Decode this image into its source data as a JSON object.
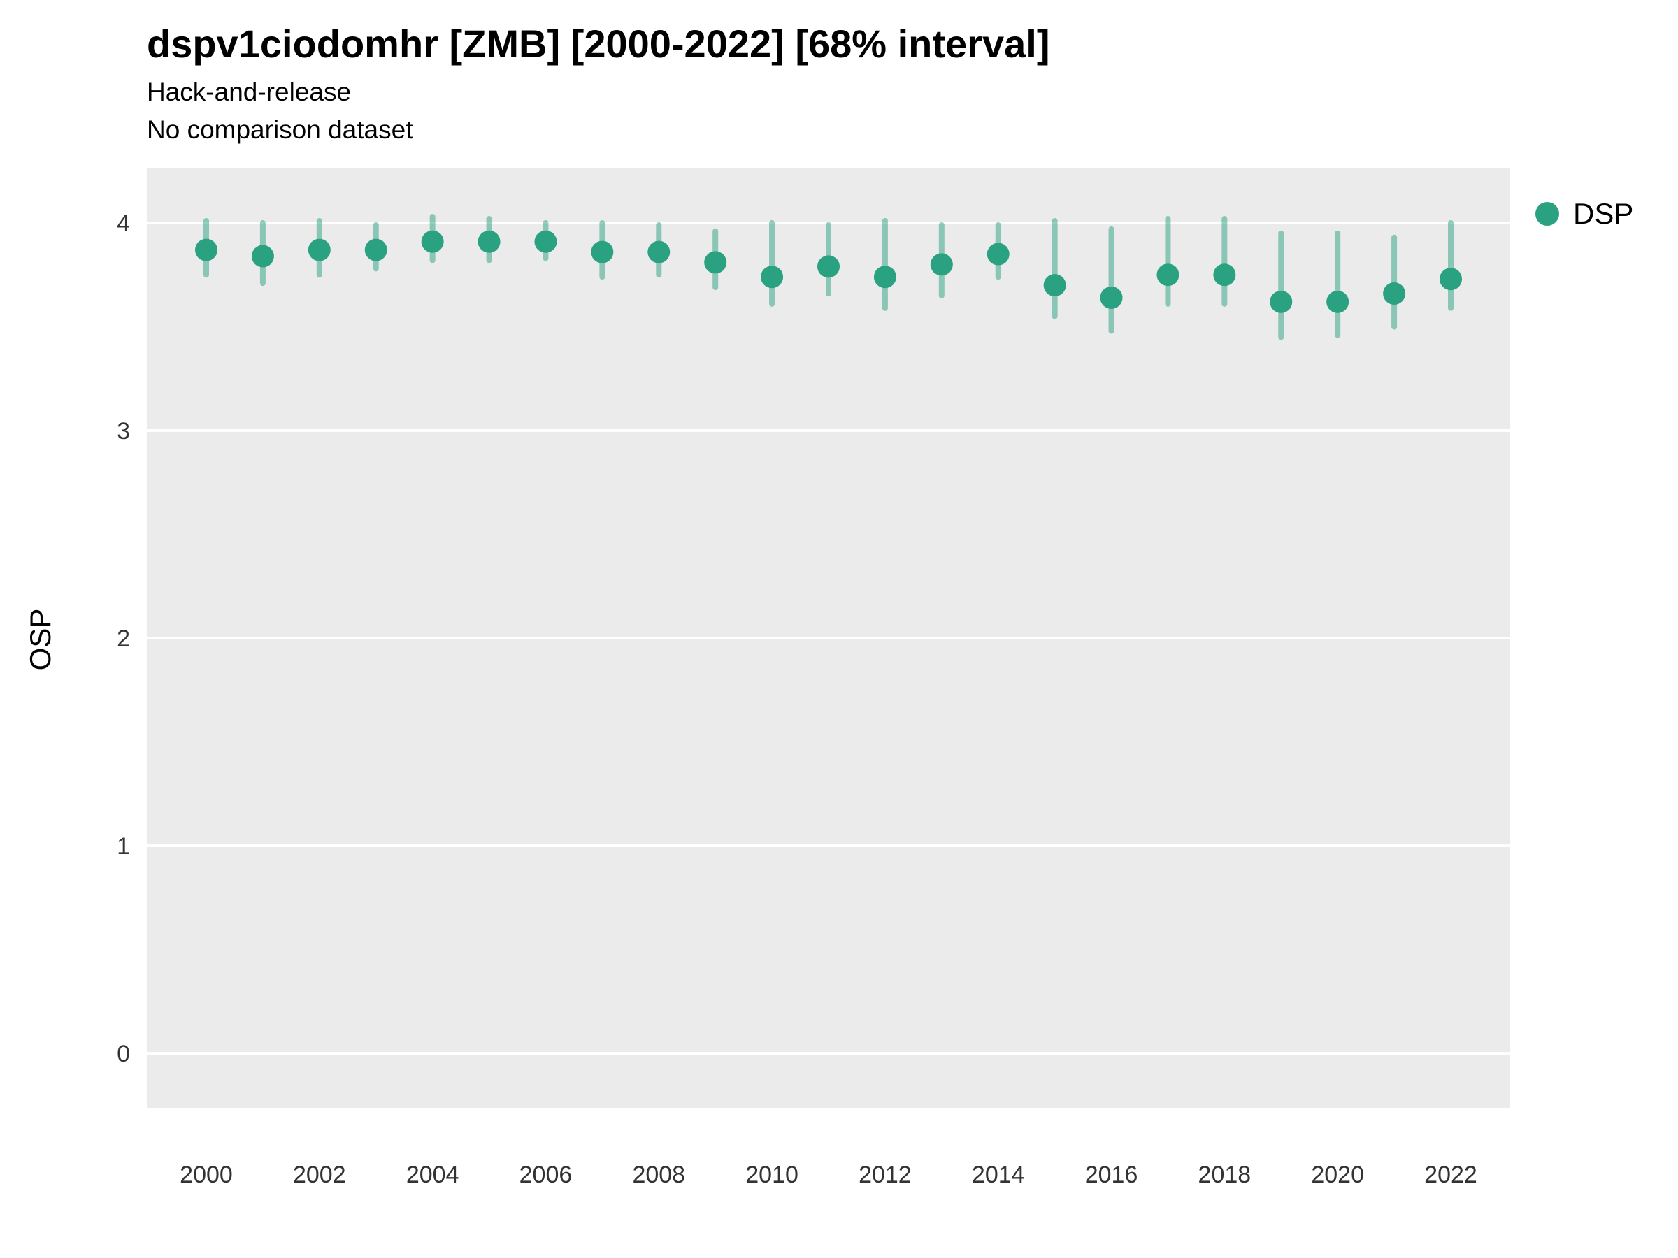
{
  "title": "dspv1ciodomhr [ZMB] [2000-2022] [68% interval]",
  "subtitle1": "Hack-and-release",
  "subtitle2": "No comparison dataset",
  "legend": {
    "label": "DSP",
    "color": "#2aa180"
  },
  "chart_data": {
    "type": "scatter",
    "title": "dspv1ciodomhr [ZMB] [2000-2022] [68% interval]",
    "subtitle": [
      "Hack-and-release",
      "No comparison dataset"
    ],
    "xlabel": "",
    "ylabel": "OSP",
    "ylim": [
      -0.27,
      4.27
    ],
    "interval_label": "68% interval",
    "grid": "horizontal-major-only",
    "legend_position": "right-top",
    "x": [
      2000,
      2001,
      2002,
      2003,
      2004,
      2005,
      2006,
      2007,
      2008,
      2009,
      2010,
      2011,
      2012,
      2013,
      2014,
      2015,
      2016,
      2017,
      2018,
      2019,
      2020,
      2021,
      2022
    ],
    "x_ticks": [
      2000,
      2002,
      2004,
      2006,
      2008,
      2010,
      2012,
      2014,
      2016,
      2018,
      2020,
      2022
    ],
    "y_ticks": [
      0,
      1,
      2,
      3,
      4
    ],
    "series": [
      {
        "name": "DSP",
        "values": [
          3.87,
          3.84,
          3.87,
          3.87,
          3.91,
          3.91,
          3.91,
          3.86,
          3.86,
          3.81,
          3.74,
          3.79,
          3.74,
          3.8,
          3.85,
          3.7,
          3.64,
          3.75,
          3.75,
          3.62,
          3.62,
          3.66,
          3.73
        ],
        "lower": [
          3.75,
          3.71,
          3.75,
          3.78,
          3.82,
          3.82,
          3.83,
          3.74,
          3.75,
          3.69,
          3.61,
          3.66,
          3.59,
          3.65,
          3.74,
          3.55,
          3.48,
          3.61,
          3.61,
          3.45,
          3.46,
          3.5,
          3.59
        ],
        "upper": [
          4.01,
          4.0,
          4.01,
          3.99,
          4.03,
          4.02,
          4.0,
          4.0,
          3.99,
          3.96,
          4.0,
          3.99,
          4.01,
          3.99,
          3.99,
          4.01,
          3.97,
          4.02,
          4.02,
          3.95,
          3.95,
          3.93,
          4.0
        ]
      }
    ],
    "colors": {
      "point": "#2aa180",
      "interval": "rgba(42,161,128,0.5)",
      "panel": "#ebebeb",
      "grid": "#ffffff",
      "tick_label": "#333333"
    }
  }
}
